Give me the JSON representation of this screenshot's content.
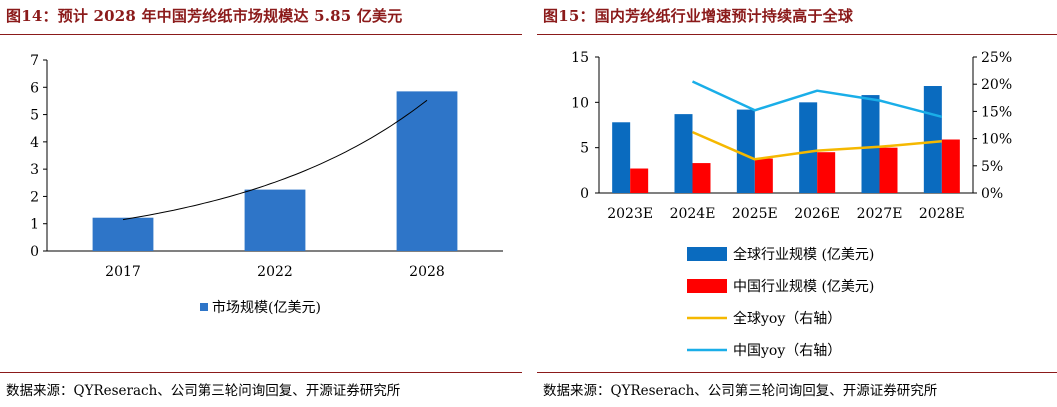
{
  "figures": [
    {
      "title": "图14：预计 2028 年中国芳纶纸市场规模达 5.85 亿美元",
      "source": "数据来源：QYReserach、公司第三轮问询回复、开源证券研究所"
    },
    {
      "title": "图15：国内芳纶纸行业增速预计持续高于全球",
      "source": "数据来源：QYReserach、公司第三轮问询回复、开源证券研究所"
    }
  ],
  "chart_data": [
    {
      "type": "bar",
      "categories": [
        "2017",
        "2022",
        "2028"
      ],
      "series": [
        {
          "name": "市场规模(亿美元)",
          "values": [
            1.22,
            2.25,
            5.85
          ],
          "color": "#2E75C8"
        }
      ],
      "trendline": {
        "type": "exponential",
        "color": "#000000"
      },
      "ylim": [
        0,
        7
      ],
      "yticks": [
        0,
        1,
        2,
        3,
        4,
        5,
        6,
        7
      ],
      "grid": false,
      "legend_position": "bottom"
    },
    {
      "type": "bar",
      "categories": [
        "2023E",
        "2024E",
        "2025E",
        "2026E",
        "2027E",
        "2028E"
      ],
      "series": [
        {
          "name": "全球行业规模 (亿美元)",
          "kind": "bar",
          "axis": "left",
          "color": "#0A6BBF",
          "values": [
            7.8,
            8.7,
            9.2,
            10.0,
            10.8,
            11.8
          ]
        },
        {
          "name": "中国行业规模 (亿美元)",
          "kind": "bar",
          "axis": "left",
          "color": "#FF0000",
          "values": [
            2.7,
            3.3,
            3.8,
            4.5,
            5.0,
            5.9
          ]
        },
        {
          "name": "全球yoy（右轴）",
          "kind": "line",
          "axis": "right",
          "color": "#F5B800",
          "values": [
            null,
            11.2,
            6.2,
            7.8,
            8.5,
            9.5
          ]
        },
        {
          "name": "中国yoy（右轴）",
          "kind": "line",
          "axis": "right",
          "color": "#1AAEE8",
          "values": [
            null,
            20.5,
            15.2,
            18.8,
            17.0,
            14.0
          ]
        }
      ],
      "ylim": [
        0,
        15
      ],
      "yticks": [
        0,
        5,
        10,
        15
      ],
      "y2lim": [
        0,
        25
      ],
      "y2ticks": [
        "0%",
        "5%",
        "10%",
        "15%",
        "20%",
        "25%"
      ],
      "grid": false,
      "legend_position": "bottom"
    }
  ]
}
